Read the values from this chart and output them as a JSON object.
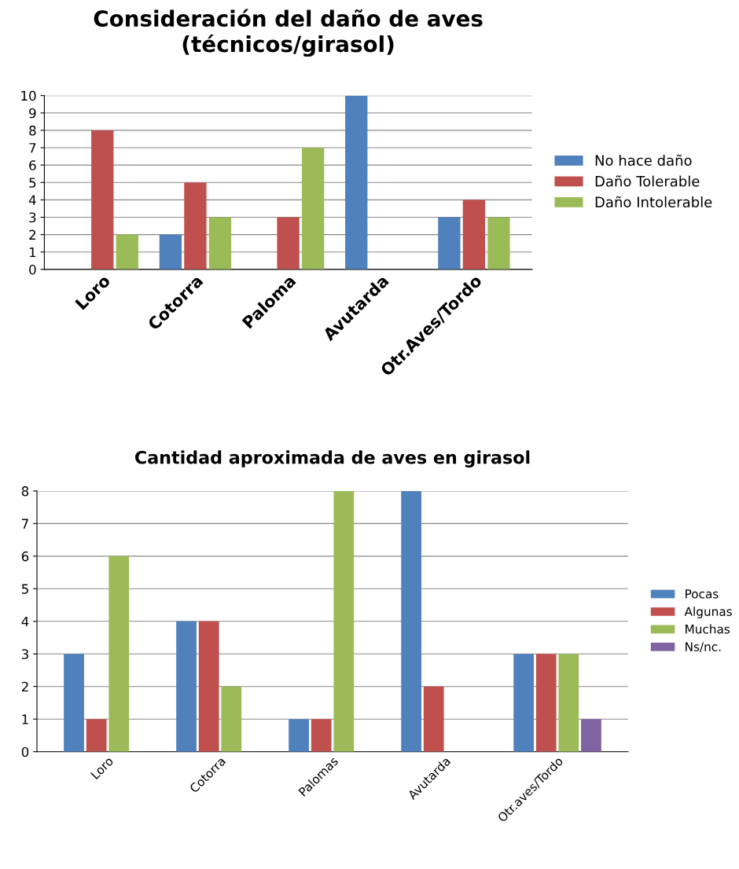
{
  "chart_data": [
    {
      "type": "bar",
      "title": "Consideración del daño de aves\n(técnicos/girasol)",
      "categories": [
        "Loro",
        "Cotorra",
        "Paloma",
        "Avutarda",
        "Otr.Aves/Tordo"
      ],
      "series": [
        {
          "name": "No hace daño",
          "color": "#4f81bd",
          "values": [
            0,
            2,
            0,
            10,
            3
          ]
        },
        {
          "name": "Daño Tolerable",
          "color": "#c0504d",
          "values": [
            8,
            5,
            3,
            0,
            4
          ]
        },
        {
          "name": "Daño Intolerable",
          "color": "#9bbb59",
          "values": [
            2,
            3,
            7,
            0,
            3
          ]
        }
      ],
      "ylim": [
        0,
        10
      ],
      "yticks": [
        0,
        1,
        2,
        3,
        4,
        5,
        6,
        7,
        8,
        9,
        10
      ],
      "grid": "y",
      "legend": "right"
    },
    {
      "type": "bar",
      "title": "Cantidad aproximada de aves en girasol",
      "categories": [
        "Loro",
        "Cotorra",
        "Palomas",
        "Avutarda",
        "Otr.aves/Tordo"
      ],
      "series": [
        {
          "name": "Pocas",
          "color": "#4f81bd",
          "values": [
            3,
            4,
            1,
            8,
            3
          ]
        },
        {
          "name": "Algunas",
          "color": "#c0504d",
          "values": [
            1,
            4,
            1,
            2,
            3
          ]
        },
        {
          "name": "Muchas",
          "color": "#9bbb59",
          "values": [
            6,
            2,
            8,
            0,
            3
          ]
        },
        {
          "name": "Ns/nc.",
          "color": "#8064a2",
          "values": [
            0,
            0,
            0,
            0,
            1
          ]
        }
      ],
      "ylim": [
        0,
        8
      ],
      "yticks": [
        0,
        1,
        2,
        3,
        4,
        5,
        6,
        7,
        8
      ],
      "grid": "y",
      "legend": "right"
    }
  ]
}
